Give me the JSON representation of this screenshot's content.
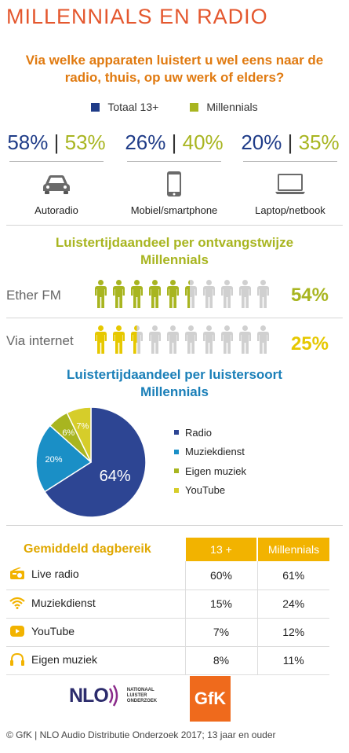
{
  "title": "MILLENNIALS EN RADIO",
  "question": "Via welke apparaten luistert u wel eens naar de radio, thuis, op uw werk of elders?",
  "legend": [
    {
      "label": "Totaal 13+",
      "color": "#1f3c88"
    },
    {
      "label": "Millennials",
      "color": "#a8b520"
    }
  ],
  "devices": [
    {
      "total": "58%",
      "millennials": "53%",
      "label": "Autoradio",
      "icon": "car-icon"
    },
    {
      "total": "26%",
      "millennials": "40%",
      "label": "Mobiel/smartphone",
      "icon": "smartphone-icon"
    },
    {
      "total": "20%",
      "millennials": "35%",
      "label": "Laptop/netbook",
      "icon": "laptop-icon"
    }
  ],
  "separator": "|",
  "section2": {
    "title_line1": "Luistertijdaandeel per ontvangstwijze",
    "title_line2": "Millennials",
    "rows": [
      {
        "label": "Ether FM",
        "value": "54%",
        "fraction": 0.54,
        "color": "#a8b520"
      },
      {
        "label": "Via internet",
        "value": "25%",
        "fraction": 0.25,
        "color": "#e6c800"
      }
    ]
  },
  "section3": {
    "title_line1": "Luistertijdaandeel per luistersoort",
    "title_line2": "Millennials"
  },
  "chart_data": {
    "type": "pie",
    "title": "Luistertijdaandeel per luistersoort Millennials",
    "slices": [
      {
        "name": "Radio",
        "value": 64,
        "label": "64%",
        "color": "#2d4593"
      },
      {
        "name": "Muziekdienst",
        "value": 20,
        "label": "20%",
        "color": "#1a8fc6"
      },
      {
        "name": "Eigen muziek",
        "value": 6,
        "label": "6%",
        "color": "#a8b520"
      },
      {
        "name": "YouTube",
        "value": 7,
        "label": "7%",
        "color": "#d6cd2a"
      }
    ]
  },
  "reach": {
    "title": "Gemiddeld dagbereik",
    "col1": "13 +",
    "col2": "Millennials",
    "rows": [
      {
        "name": "Live radio",
        "icon": "radio-icon",
        "v1": "60%",
        "v2": "61%"
      },
      {
        "name": "Muziekdienst",
        "icon": "wifi-icon",
        "v1": "15%",
        "v2": "24%"
      },
      {
        "name": "YouTube",
        "icon": "play-icon",
        "v1": "7%",
        "v2": "12%"
      },
      {
        "name": "Eigen muziek",
        "icon": "headphones-icon",
        "v1": "8%",
        "v2": "11%"
      }
    ]
  },
  "logos": {
    "nlo": "NLO",
    "nlo_sub1": "NATIONAAL",
    "nlo_sub2": "LUISTER",
    "nlo_sub3": "ONDERZOEK",
    "gfk": "GfK"
  },
  "footer": "© GfK | NLO Audio Distributie Onderzoek 2017;  13 jaar en ouder"
}
